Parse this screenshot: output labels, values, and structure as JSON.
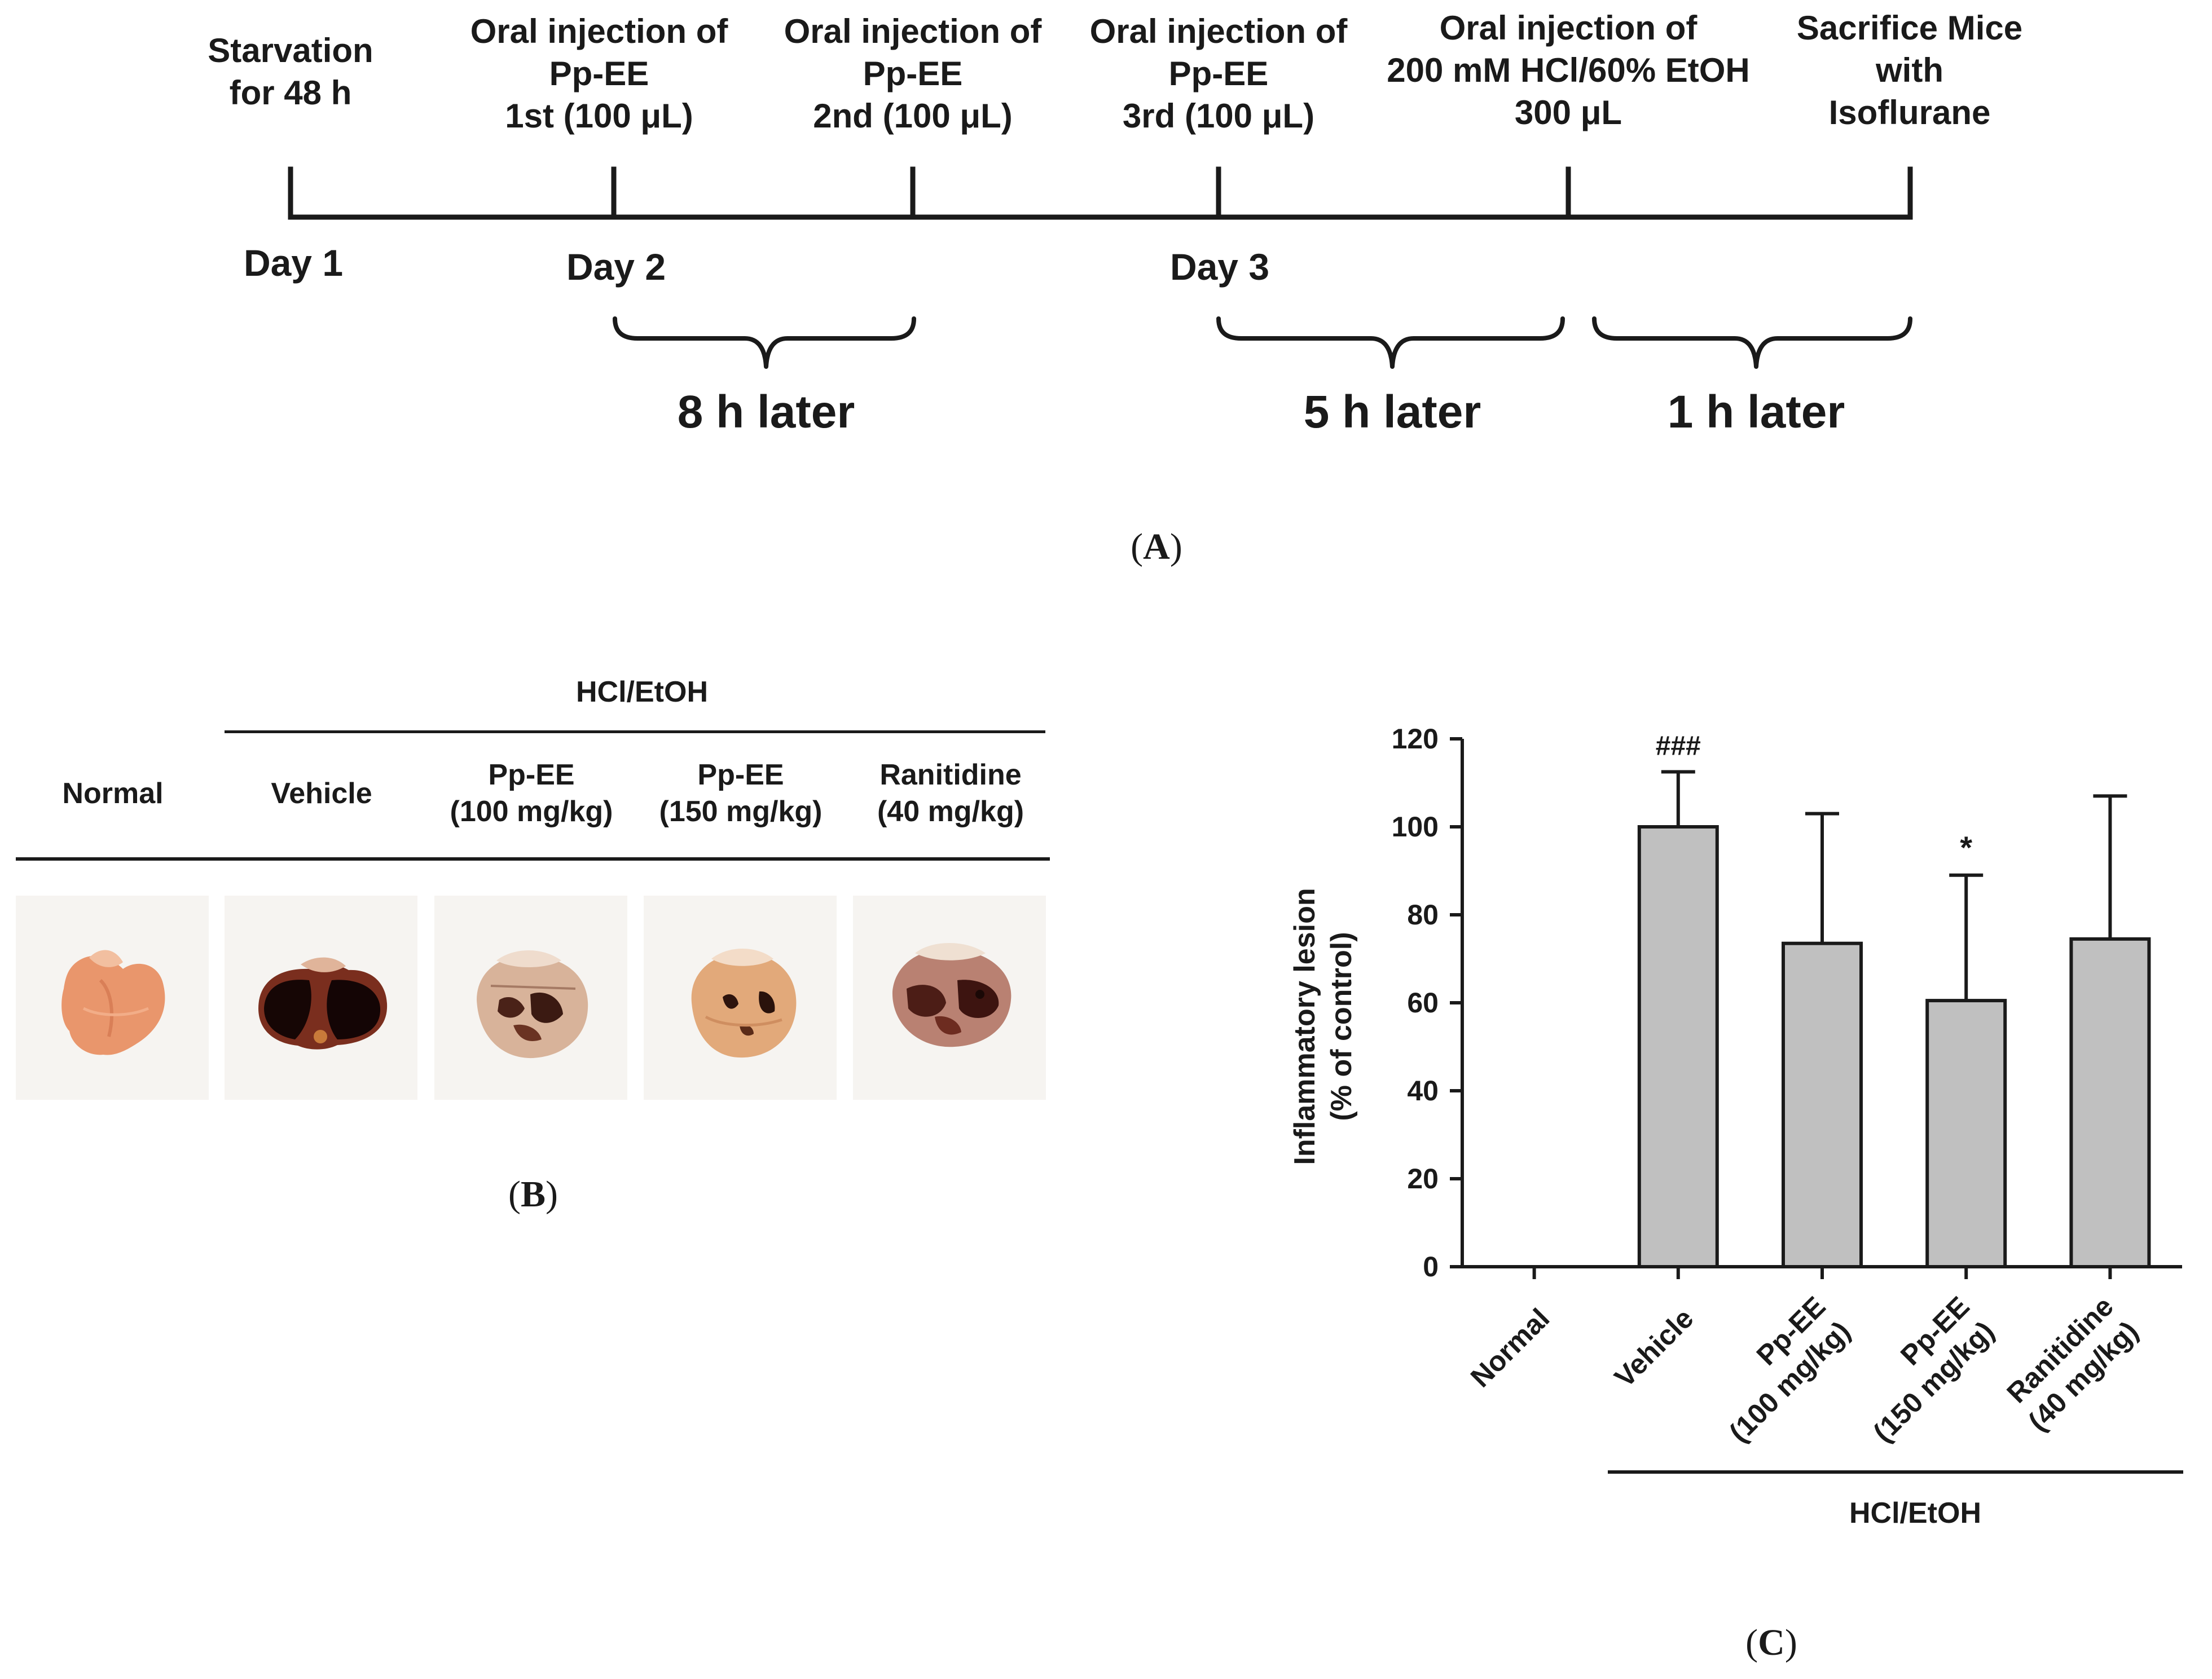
{
  "panel_a": {
    "events": [
      {
        "line1": "Starvation",
        "line2": "for 48 h"
      },
      {
        "line1": "Oral injection  of",
        "line2": "Pp-EE",
        "line3": "1st (100 μL)"
      },
      {
        "line1": "Oral injection  of",
        "line2": "Pp-EE",
        "line3": "2nd (100 μL)"
      },
      {
        "line1": "Oral injection  of",
        "line2": "Pp-EE",
        "line3": "3rd (100 μL)"
      },
      {
        "line1": "Oral injection  of",
        "line2": "200 mM HCl/60%  EtOH",
        "line3": "300 μL"
      },
      {
        "line1": "Sacrifice Mice",
        "line2": "with",
        "line3": "Isoflurane"
      }
    ],
    "days": [
      "Day 1",
      "Day 2",
      "Day 3"
    ],
    "intervals": [
      "8 h later",
      "5 h later",
      "1 h later"
    ],
    "label": "A"
  },
  "panel_b": {
    "treatment_header": "HCl/EtOH",
    "columns": [
      {
        "line1": "Normal",
        "line2": ""
      },
      {
        "line1": "Vehicle",
        "line2": ""
      },
      {
        "line1": "Pp-EE",
        "line2": "(100 mg/kg)"
      },
      {
        "line1": "Pp-EE",
        "line2": "(150 mg/kg)"
      },
      {
        "line1": "Ranitidine",
        "line2": "(40 mg/kg)"
      }
    ],
    "label": "B"
  },
  "chart_data": {
    "type": "bar",
    "title": "",
    "ylabel_line1": "Inflammatory lesion",
    "ylabel_line2": "(% of control)",
    "ylim": [
      0,
      120
    ],
    "yticks": [
      "0",
      "20",
      "40",
      "60",
      "80",
      "100",
      "120"
    ],
    "categories": [
      {
        "line1": "Normal",
        "line2": ""
      },
      {
        "line1": "Vehicle",
        "line2": ""
      },
      {
        "line1": "Pp-EE",
        "line2": "(100 mg/kg)"
      },
      {
        "line1": "Pp-EE",
        "line2": "(150 mg/kg)"
      },
      {
        "line1": "Ranitidine",
        "line2": "(40 mg/kg)"
      }
    ],
    "values": [
      0,
      100,
      73.5,
      60.5,
      74.5
    ],
    "errors": [
      0,
      12.5,
      29.5,
      28.5,
      32.5
    ],
    "significance": [
      "",
      "###",
      "",
      "*",
      ""
    ],
    "group_label": "HCl/EtOH",
    "bar_color": "#c0c0c0",
    "label": "C"
  },
  "colors": {
    "text": "#1a1a1a",
    "bar": "#c0c0c0",
    "background": "#ffffff"
  }
}
